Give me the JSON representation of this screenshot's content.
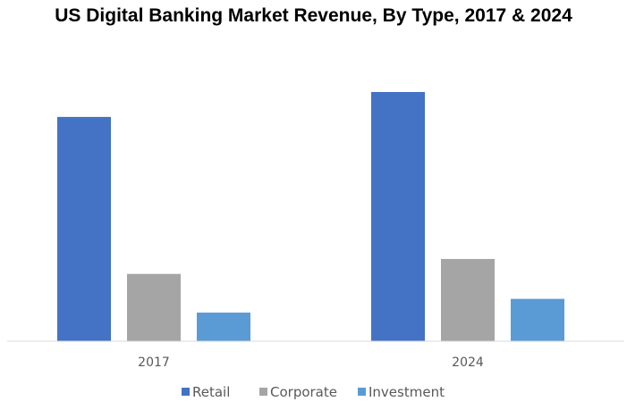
{
  "chart_data": {
    "type": "bar",
    "title": "US Digital Banking Market Revenue, By Type, 2017 & 2024",
    "categories": [
      "2017",
      "2024"
    ],
    "series": [
      {
        "name": "Retail",
        "values": [
          90,
          100
        ],
        "color": "#4472c4"
      },
      {
        "name": "Corporate",
        "values": [
          27,
          33
        ],
        "color": "#a5a5a5"
      },
      {
        "name": "Investment",
        "values": [
          11.5,
          17
        ],
        "color": "#5b9bd5"
      }
    ],
    "ylim": [
      0,
      100
    ],
    "xlabel": "",
    "ylabel": "",
    "grid": false,
    "legend_position": "bottom"
  }
}
